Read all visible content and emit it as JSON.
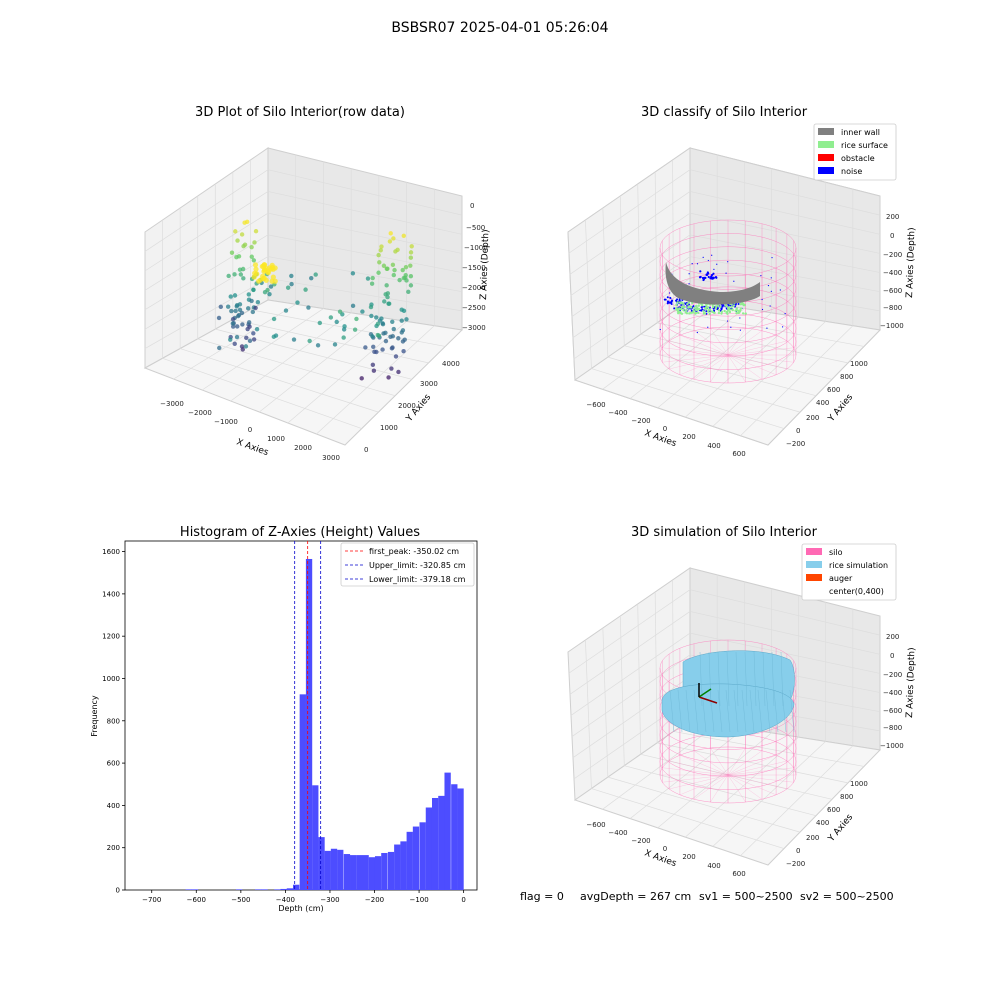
{
  "suptitle": "BSBSR07 2025-04-01 05:26:04",
  "colors": {
    "hist_bar": "#4d4dff",
    "first_peak": "#ff0000",
    "limit": "#0000cc",
    "inner_wall": "#808080",
    "rice_surface": "#90ee90",
    "obstacle": "#ff0000",
    "noise": "#0000ff",
    "silo": "#ff69b4",
    "rice_simulation": "#87ceeb",
    "auger": "#ff4500"
  },
  "plot_raw": {
    "title": "3D Plot of Silo Interior(row data)",
    "xlabel": "X Axies",
    "ylabel": "Y Axies",
    "zlabel": "Z Axies (Depth)",
    "x_ticks": [
      "−3000",
      "−2000",
      "−1000",
      "0",
      "1000",
      "2000",
      "3000"
    ],
    "y_ticks": [
      "0",
      "1000",
      "2000",
      "3000",
      "4000"
    ],
    "z_ticks": [
      "0",
      "−500",
      "−1000",
      "−1500",
      "−2000",
      "−2500",
      "−3000"
    ]
  },
  "plot_classify": {
    "title": "3D classify of Silo Interior",
    "xlabel": "X Axies",
    "ylabel": "Y Axies",
    "zlabel": "Z Axies (Depth)",
    "x_ticks": [
      "−600",
      "−400",
      "−200",
      "0",
      "200",
      "400",
      "600"
    ],
    "y_ticks": [
      "−200",
      "0",
      "200",
      "400",
      "600",
      "800",
      "1000"
    ],
    "z_ticks": [
      "200",
      "0",
      "−200",
      "−400",
      "−600",
      "−800",
      "−1000"
    ],
    "legend": [
      "inner wall",
      "rice surface",
      "obstacle",
      "noise"
    ]
  },
  "plot_sim": {
    "title": "3D simulation of Silo Interior",
    "xlabel": "X Axies",
    "ylabel": "Y Axies",
    "zlabel": "Z Axies (Depth)",
    "x_ticks": [
      "−600",
      "−400",
      "−200",
      "0",
      "200",
      "400",
      "600"
    ],
    "y_ticks": [
      "−200",
      "0",
      "200",
      "400",
      "600",
      "800",
      "1000"
    ],
    "z_ticks": [
      "200",
      "0",
      "−200",
      "−400",
      "−600",
      "−800",
      "−1000"
    ],
    "legend": [
      "silo",
      "rice simulation",
      "auger",
      "center(0,400)"
    ]
  },
  "status_line": {
    "flag": "flag = 0",
    "avg": "avgDepth = 267 cm",
    "sv1": "sv1 = 500~2500",
    "sv2": "sv2 = 500~2500"
  },
  "chart_data": [
    {
      "type": "bar",
      "title": "Histogram of Z-Axies (Height) Values",
      "xlabel": "Depth (cm)",
      "ylabel": "Frequency",
      "xlim": [
        -760,
        30
      ],
      "ylim": [
        0,
        1650
      ],
      "x_ticks": [
        -700,
        -600,
        -500,
        -400,
        -300,
        -200,
        -100,
        0
      ],
      "x_tick_labels": [
        "−700",
        "−600",
        "−500",
        "−400",
        "−300",
        "−200",
        "−100",
        "0"
      ],
      "y_ticks": [
        0,
        200,
        400,
        600,
        800,
        1000,
        1200,
        1400,
        1600
      ],
      "bin_width": 14.15,
      "bins": [
        {
          "x": -624,
          "v": 3
        },
        {
          "x": -610,
          "v": 3
        },
        {
          "x": -511,
          "v": 3
        },
        {
          "x": -468,
          "v": 3
        },
        {
          "x": -454,
          "v": 3
        },
        {
          "x": -425,
          "v": 3
        },
        {
          "x": -411,
          "v": 5
        },
        {
          "x": -397,
          "v": 8
        },
        {
          "x": -383,
          "v": 25
        },
        {
          "x": -368,
          "v": 925
        },
        {
          "x": -354,
          "v": 1565
        },
        {
          "x": -340,
          "v": 495
        },
        {
          "x": -326,
          "v": 250
        },
        {
          "x": -312,
          "v": 185
        },
        {
          "x": -298,
          "v": 195
        },
        {
          "x": -284,
          "v": 190
        },
        {
          "x": -269,
          "v": 170
        },
        {
          "x": -255,
          "v": 165
        },
        {
          "x": -241,
          "v": 165
        },
        {
          "x": -227,
          "v": 165
        },
        {
          "x": -213,
          "v": 155
        },
        {
          "x": -199,
          "v": 160
        },
        {
          "x": -185,
          "v": 175
        },
        {
          "x": -170,
          "v": 180
        },
        {
          "x": -156,
          "v": 215
        },
        {
          "x": -142,
          "v": 230
        },
        {
          "x": -128,
          "v": 275
        },
        {
          "x": -114,
          "v": 300
        },
        {
          "x": -99,
          "v": 320
        },
        {
          "x": -85,
          "v": 390
        },
        {
          "x": -71,
          "v": 435
        },
        {
          "x": -57,
          "v": 445
        },
        {
          "x": -43,
          "v": 555
        },
        {
          "x": -28,
          "v": 500
        },
        {
          "x": -14,
          "v": 480
        }
      ],
      "lines": [
        {
          "name": "first_peak: -350.02 cm",
          "x": -350.02,
          "color_key": "first_peak"
        },
        {
          "name": "Upper_limit: -320.85 cm",
          "x": -320.85,
          "color_key": "limit"
        },
        {
          "name": "Lower_limit: -379.18 cm",
          "x": -379.18,
          "color_key": "limit"
        }
      ]
    }
  ]
}
